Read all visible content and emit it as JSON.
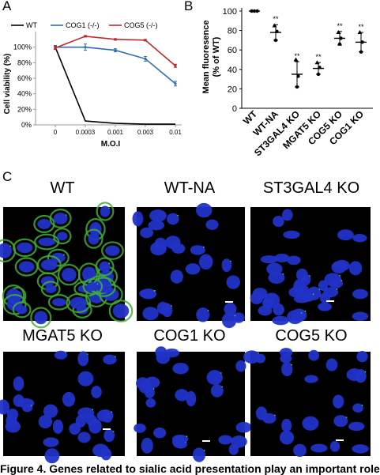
{
  "panels": {
    "a": "A",
    "b": "B",
    "c": "C"
  },
  "chart_data": [
    {
      "type": "line",
      "xlabel": "M.O.I",
      "ylabel": "Cell viability (%)",
      "x_ticks": [
        "0",
        "0.0003",
        "0.001",
        "0.003",
        "0.01"
      ],
      "y_ticks": [
        "0%",
        "20%",
        "40%",
        "60%",
        "80%",
        "100%"
      ],
      "ylim": [
        0,
        120
      ],
      "legend_position": "top",
      "series": [
        {
          "name": "WT",
          "color": "#000000",
          "values": [
            100,
            5,
            2,
            1,
            1
          ],
          "errors": [
            2,
            0,
            0,
            0,
            0
          ]
        },
        {
          "name": "COG1 (-/-)",
          "color": "#2f6db5",
          "values": [
            100,
            100,
            96,
            85,
            53
          ],
          "errors": [
            2,
            4,
            2,
            3,
            3
          ]
        },
        {
          "name": "COG5 (-/-)",
          "color": "#c0282d",
          "values": [
            99,
            114,
            110,
            109,
            76
          ],
          "errors": [
            2,
            1,
            1,
            1,
            2
          ]
        }
      ]
    },
    {
      "type": "scatter",
      "ylabel": "Mean fluoresence (% of WT)",
      "categories": [
        "WT",
        "WT-NA",
        "ST3GAL4 KO",
        "MGAT5 KO",
        "COG5 KO",
        "COG1 KO"
      ],
      "y_ticks": [
        "0",
        "20",
        "40",
        "60",
        "80",
        "100"
      ],
      "ylim": [
        0,
        100
      ],
      "means": [
        100,
        78,
        35,
        41,
        72,
        68
      ],
      "errors": [
        0,
        8,
        13,
        6,
        7,
        10
      ],
      "points": [
        [
          100,
          100,
          100
        ],
        [
          85,
          70,
          79
        ],
        [
          50,
          22,
          33
        ],
        [
          47,
          35,
          42
        ],
        [
          78,
          66,
          72
        ],
        [
          78,
          58,
          68
        ]
      ],
      "significance": [
        "",
        "**",
        "**",
        "**",
        "**",
        "**"
      ]
    }
  ],
  "micrographs": [
    {
      "title": "WT"
    },
    {
      "title": "WT-NA"
    },
    {
      "title": "ST3GAL4 KO"
    },
    {
      "title": "MGAT5 KO"
    },
    {
      "title": "COG1 KO"
    },
    {
      "title": "COG5 KO"
    }
  ],
  "caption": "Figure 4. Genes related to sialic acid presentation play an important role"
}
